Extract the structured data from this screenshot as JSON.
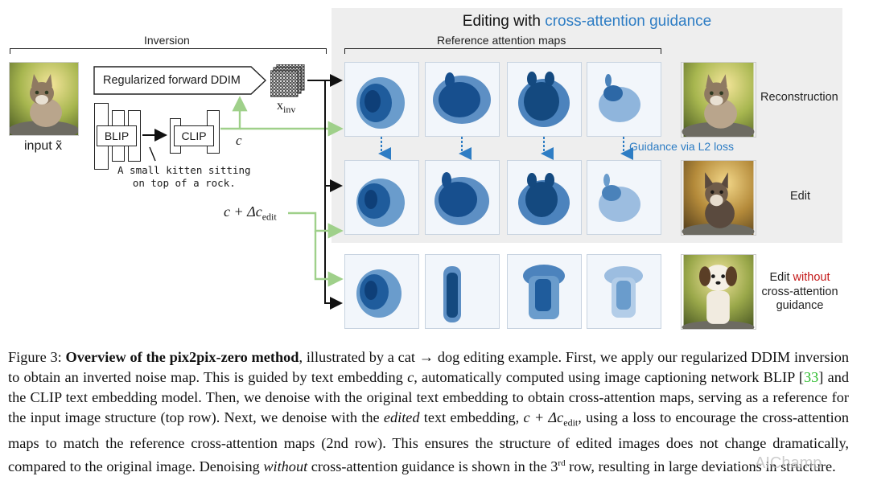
{
  "figure": {
    "title_prefix": "Editing with ",
    "title_accent": "cross-attention guidance",
    "inversion_label": "Inversion",
    "reference_label": "Reference attention maps",
    "input_label": "input x̃",
    "ddim_label": "Regularized forward DDIM",
    "xinv_label": "x",
    "xinv_sub": "inv",
    "blip_label": "BLIP",
    "clip_label": "CLIP",
    "c_label": "c",
    "caption_line1": "A small kitten sitting",
    "caption_line2": "on top of a rock.",
    "c_edit_label": "c + Δc",
    "c_edit_sub": "edit",
    "guidance_label": "Guidance via L2 loss",
    "row_labels": {
      "reconstruction": "Reconstruction",
      "edit": "Edit",
      "edit_without_prefix": "Edit ",
      "edit_without_red": "without",
      "edit_without_line2": "cross-attention",
      "edit_without_line3": "guidance"
    },
    "accent_color": "#2e7dc4",
    "arrow_green": "#9fd08a"
  },
  "caption": {
    "fig_num": "Figure 3: ",
    "bold": "Overview of the pix2pix-zero method",
    "t1": ", illustrated by a cat → dog editing example. First, we apply our regularized DDIM inversion to obtain an inverted noise map. This is guided by text embedding ",
    "c": "c",
    "t2": ", automatically computed using image captioning network BLIP [",
    "cite": "33",
    "t3": "] and the CLIP text embedding model. Then, we denoise with the original text embedding to obtain cross-attention maps, serving as a reference for the input image structure (top row). Next, we denoise with the ",
    "edited": "edited",
    "t4": " text embedding, ",
    "cedit": "c + Δc",
    "cedit_sub": "edit",
    "t5": ", using a loss to encourage the cross-attention maps to match the reference cross-attention maps (2nd row). This ensures the structure of edited images does not change dramatically, compared to the original image. Denoising ",
    "without": "without",
    "t6": " cross-attention guidance is shown in the 3",
    "rd": "rd",
    "t7": " row, resulting in large deviations in structure."
  },
  "watermark": "AIChamp"
}
